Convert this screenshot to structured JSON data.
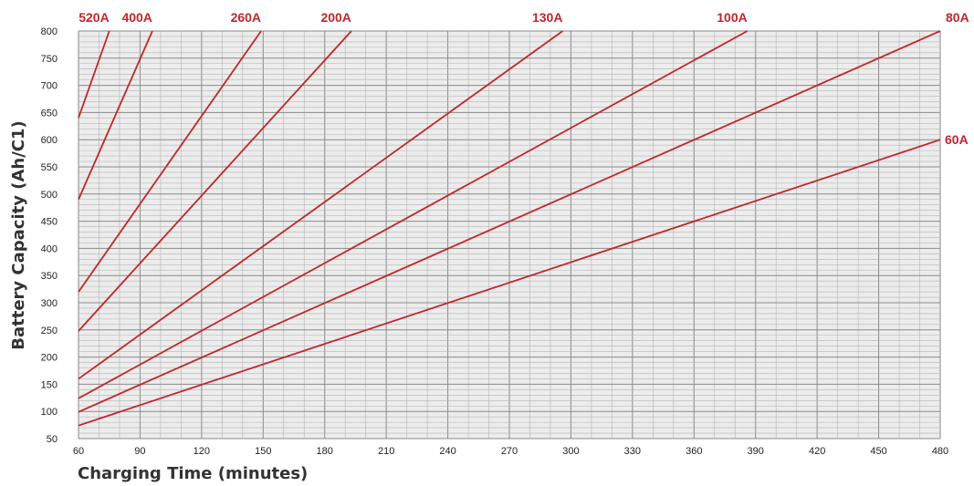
{
  "chart_data": {
    "type": "line",
    "xlabel": "Charging Time (minutes)",
    "ylabel": "Battery Capacity (Ah/C1)",
    "xlim": [
      60,
      480
    ],
    "ylim": [
      50,
      800
    ],
    "x_ticks": [
      60,
      90,
      120,
      150,
      180,
      210,
      240,
      270,
      300,
      330,
      360,
      390,
      420,
      450,
      480
    ],
    "y_ticks": [
      50,
      100,
      150,
      200,
      250,
      300,
      350,
      400,
      450,
      500,
      550,
      600,
      650,
      700,
      750,
      800
    ],
    "grid": true,
    "series": [
      {
        "name": "520A",
        "x": [
          60,
          75
        ],
        "y": [
          640,
          800
        ]
      },
      {
        "name": "400A",
        "x": [
          60,
          96
        ],
        "y": [
          490,
          800
        ]
      },
      {
        "name": "260A",
        "x": [
          60,
          149
        ],
        "y": [
          320,
          800
        ]
      },
      {
        "name": "200A",
        "x": [
          60,
          193
        ],
        "y": [
          248,
          800
        ]
      },
      {
        "name": "130A",
        "x": [
          60,
          296
        ],
        "y": [
          160,
          800
        ]
      },
      {
        "name": "100A",
        "x": [
          60,
          386
        ],
        "y": [
          124,
          800
        ]
      },
      {
        "name": "80A",
        "x": [
          60,
          480
        ],
        "y": [
          99,
          800
        ]
      },
      {
        "name": "60A",
        "x": [
          60,
          480
        ],
        "y": [
          74,
          600
        ]
      }
    ]
  },
  "colors": {
    "line": "#c0272d",
    "label": "#c0272d",
    "plot_bg": "#ececec",
    "grid_major": "#8a8a8a",
    "grid_minor": "#b5b5b5"
  }
}
